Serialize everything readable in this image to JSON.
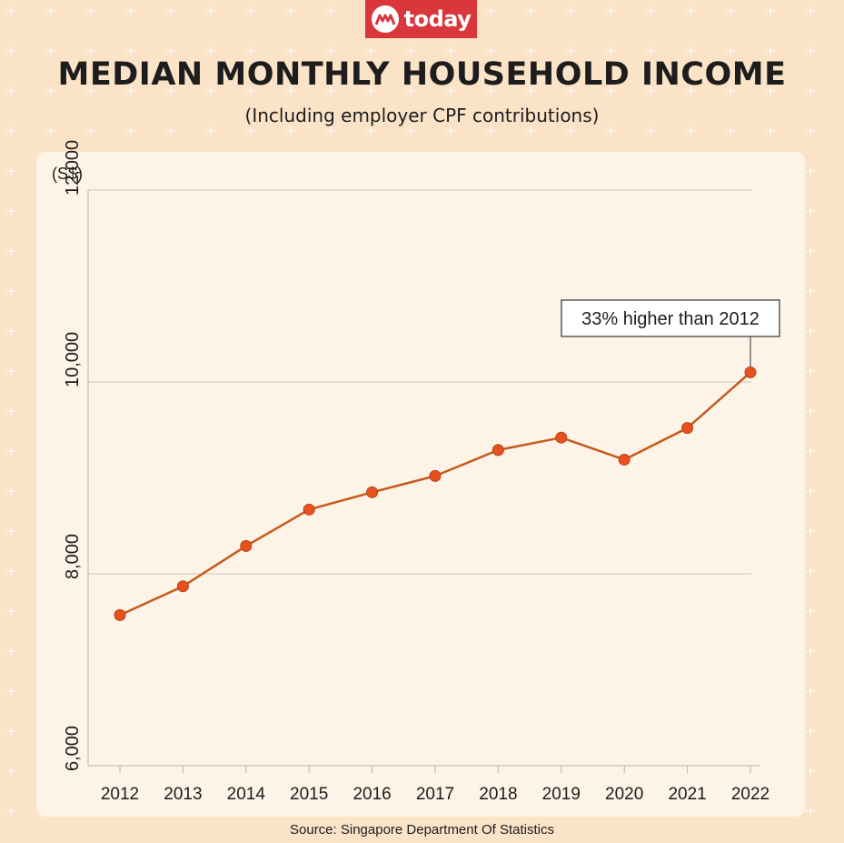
{
  "logo": {
    "text": "today"
  },
  "header": {
    "title": "MEDIAN MONTHLY HOUSEHOLD INCOME",
    "subtitle": "(Including employer CPF contributions)"
  },
  "source": "Source: Singapore Department Of Statistics",
  "colors": {
    "background": "#fbe3c8",
    "panel": "#fdf3e6",
    "line": "#c55a1c",
    "marker": "#e8501e",
    "brand": "#d9373c"
  },
  "chart_data": {
    "type": "line",
    "title": "MEDIAN MONTHLY HOUSEHOLD INCOME",
    "subtitle": "(Including employer CPF contributions)",
    "ylabel": "(S$)",
    "xlabel": "",
    "x": [
      "2012",
      "2013",
      "2014",
      "2015",
      "2016",
      "2017",
      "2018",
      "2019",
      "2020",
      "2021",
      "2022"
    ],
    "series": [
      {
        "values": [
          7570,
          7870,
          8290,
          8670,
          8850,
          9020,
          9290,
          9420,
          9190,
          9520,
          10100
        ]
      }
    ],
    "ylim": [
      6000,
      12000
    ],
    "yticks": [
      6000,
      8000,
      10000,
      12000
    ],
    "ytick_labels": [
      "6,000",
      "8,000",
      "10,000",
      "12,000"
    ],
    "grid": "horizontal",
    "annotation": {
      "text": "33% higher than 2012",
      "x": "2022",
      "y": 10100
    }
  }
}
